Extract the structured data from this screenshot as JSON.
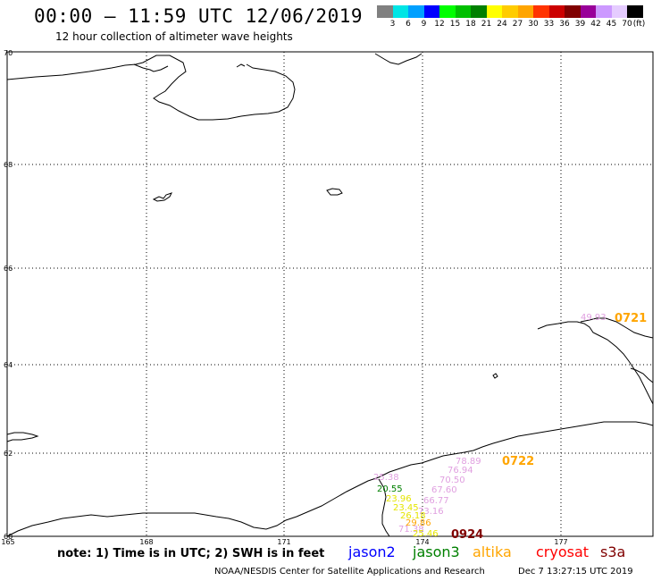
{
  "header": {
    "title": "00:00 – 11:59 UTC 12/06/2019",
    "subtitle": "12 hour collection of altimeter wave heights"
  },
  "colorbar": {
    "colors": [
      "#808080",
      "#00e5e5",
      "#00a0ff",
      "#0000ff",
      "#00ff00",
      "#00c000",
      "#008000",
      "#ffff00",
      "#ffcc00",
      "#ffa500",
      "#ff3300",
      "#cc0000",
      "#800000",
      "#990099",
      "#cc99ff",
      "#e5ccff",
      "#000000"
    ],
    "labels": [
      "3",
      "6",
      "9",
      "12",
      "15",
      "18",
      "21",
      "24",
      "27",
      "30",
      "33",
      "36",
      "39",
      "42",
      "45",
      "70",
      "(ft)"
    ]
  },
  "map": {
    "lat_labels": [
      "70",
      "68",
      "66",
      "64",
      "62",
      "60"
    ],
    "lon_labels": [
      "165",
      "168",
      "171",
      "174",
      "177"
    ]
  },
  "observations": [
    {
      "value": "49.93",
      "color": "#e0a0e0"
    },
    {
      "value": "78.89",
      "color": "#e0a0e0"
    },
    {
      "value": "76.94",
      "color": "#e0a0e0"
    },
    {
      "value": "70.50",
      "color": "#e0a0e0"
    },
    {
      "value": "67.60",
      "color": "#e0a0e0"
    },
    {
      "value": "66.77",
      "color": "#e0a0e0"
    },
    {
      "value": "73.16",
      "color": "#e0a0e0"
    },
    {
      "value": "25.38",
      "color": "#e0a0e0"
    },
    {
      "value": "20.55",
      "color": "#008000"
    },
    {
      "value": "23.96",
      "color": "#e5e500"
    },
    {
      "value": "23.45",
      "color": "#e5e500"
    },
    {
      "value": "26.18",
      "color": "#e5e500"
    },
    {
      "value": "29.86",
      "color": "#ffa500"
    },
    {
      "value": "71.38",
      "color": "#e0a0e0"
    },
    {
      "value": "25.46",
      "color": "#e5e500"
    }
  ],
  "pass_times": [
    {
      "time": "0721",
      "color": "#ffa500"
    },
    {
      "time": "0722",
      "color": "#ffa500"
    },
    {
      "time": "0924",
      "color": "#800000"
    }
  ],
  "legend": {
    "note": "note: 1) Time is in UTC; 2) SWH is in feet",
    "satellites": [
      {
        "name": "jason2",
        "color": "#0000ff"
      },
      {
        "name": "jason3",
        "color": "#008000"
      },
      {
        "name": "altika",
        "color": "#ffa500"
      },
      {
        "name": "cryosat",
        "color": "#ff0000"
      },
      {
        "name": "s3a",
        "color": "#800000"
      }
    ]
  },
  "footer": {
    "credit": "NOAA/NESDIS Center for Satellite Applications and Research",
    "timestamp": "Dec  7 13:27:15 UTC 2019"
  }
}
